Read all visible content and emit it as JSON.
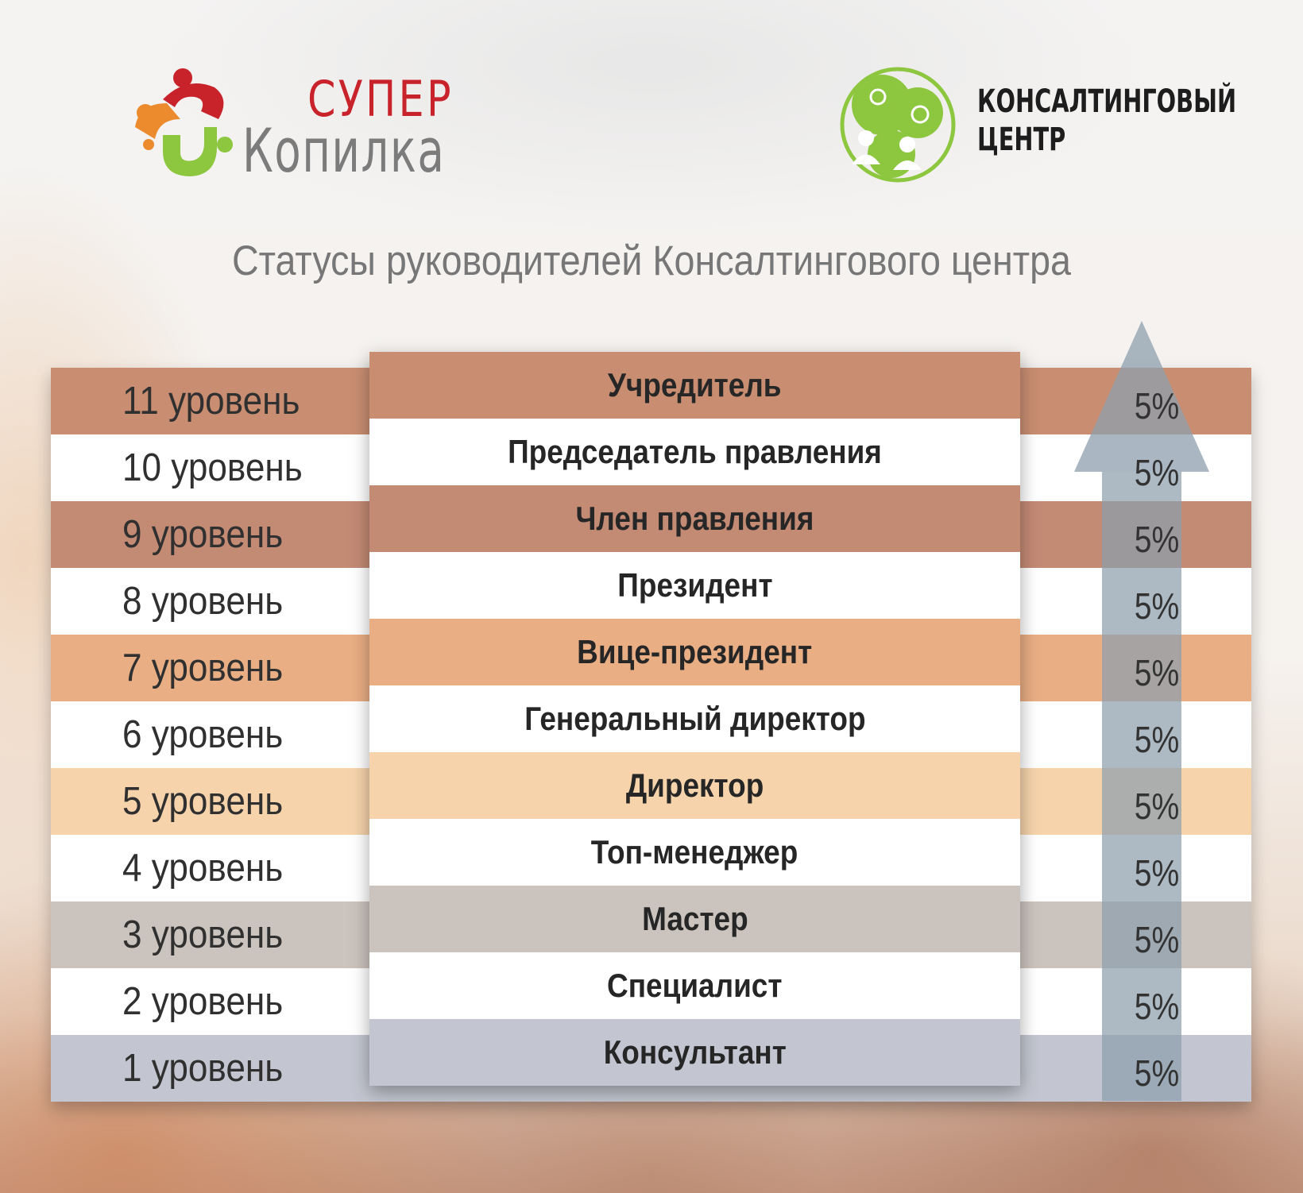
{
  "logos": {
    "left_line1": "СУПЕР",
    "left_line2": "Копилка",
    "right_line1": "КОНСАЛТИНГОВЫЙ",
    "right_line2": "ЦЕНТР"
  },
  "title": "Статусы руководителей Консалтингового центра",
  "rows": [
    {
      "level": "11 уровень",
      "status": "Учредитель",
      "percent": "5%",
      "band_color": "#c98e72",
      "center_color": "#c98e72"
    },
    {
      "level": "10 уровень",
      "status": "Председатель правления",
      "percent": "5%",
      "band_color": "#ffffff",
      "center_color": "#ffffff"
    },
    {
      "level": "9 уровень",
      "status": "Член правления",
      "percent": "5%",
      "band_color": "#c38a74",
      "center_color": "#c38a74"
    },
    {
      "level": "8 уровень",
      "status": "Президент",
      "percent": "5%",
      "band_color": "#ffffff",
      "center_color": "#ffffff"
    },
    {
      "level": "7 уровень",
      "status": "Вице-президент",
      "percent": "5%",
      "band_color": "#e9ae84",
      "center_color": "#e9ae84"
    },
    {
      "level": "6 уровень",
      "status": "Генеральный директор",
      "percent": "5%",
      "band_color": "#ffffff",
      "center_color": "#ffffff"
    },
    {
      "level": "5 уровень",
      "status": "Директор",
      "percent": "5%",
      "band_color": "#f6d3ab",
      "center_color": "#f6d3ab"
    },
    {
      "level": "4 уровень",
      "status": "Топ-менеджер",
      "percent": "5%",
      "band_color": "#ffffff",
      "center_color": "#ffffff"
    },
    {
      "level": "3 уровень",
      "status": "Мастер",
      "percent": "5%",
      "band_color": "#cbc3bd",
      "center_color": "#cbc3bd"
    },
    {
      "level": "2 уровень",
      "status": "Специалист",
      "percent": "5%",
      "band_color": "#ffffff",
      "center_color": "#ffffff"
    },
    {
      "level": "1 уровень",
      "status": "Консультант",
      "percent": "5%",
      "band_color": "#c3c6d0",
      "center_color": "#c3c6d0"
    }
  ],
  "arrow_color": "#8e9fad"
}
